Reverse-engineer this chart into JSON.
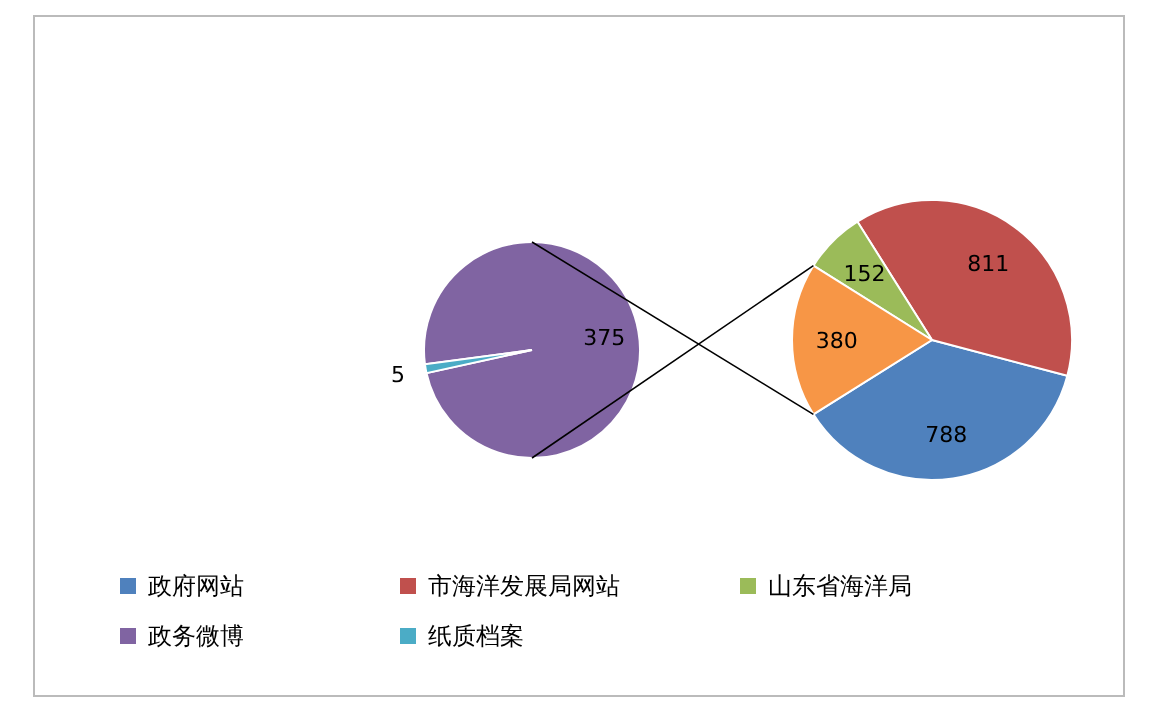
{
  "chart_data": [
    {
      "type": "pie",
      "categories": [
        "政府网站",
        "市海洋发展局网站",
        "山东省海洋局",
        null
      ],
      "values": [
        788,
        811,
        152,
        380
      ],
      "colors": [
        "#4f81bd",
        "#c0504d",
        "#9bbb59",
        "#f79646"
      ],
      "data_labels": true,
      "legend": "bottom"
    },
    {
      "type": "pie",
      "categories": [
        "政务微博",
        "纸质档案"
      ],
      "values": [
        375,
        5
      ],
      "colors": [
        "#8064a2",
        "#4bacc6"
      ],
      "data_labels": true,
      "legend": "bottom"
    }
  ]
}
